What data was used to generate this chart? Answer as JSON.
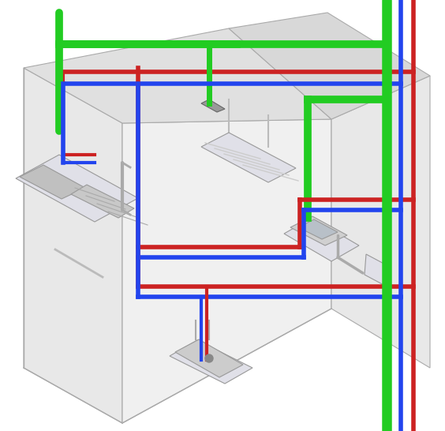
{
  "title": "",
  "background_color": "#ffffff",
  "pipe_colors": {
    "green": "#22cc22",
    "blue": "#2244ee",
    "red": "#cc2222"
  },
  "wall_color": "#d8d8d8",
  "wall_edge_color": "#aaaaaa",
  "fixture_color": "#e0e0e8",
  "fixture_edge_color": "#999999",
  "pipe_lw_large": 7,
  "pipe_lw_medium": 4,
  "pipe_lw_small": 3,
  "figsize": [
    5.64,
    5.46
  ],
  "dpi": 100
}
